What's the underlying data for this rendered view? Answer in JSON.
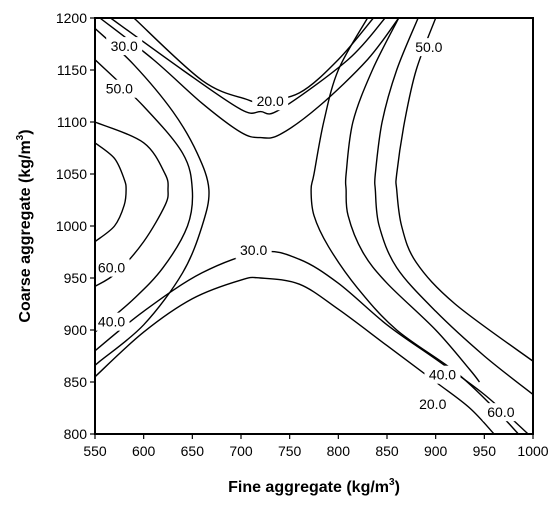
{
  "chart_data": {
    "type": "contour",
    "title": "",
    "xlabel": "Fine aggregate (kg/m",
    "xlabel_sup": "3",
    "xlabel_end": ")",
    "ylabel": "Coarse aggregate (kg/m",
    "ylabel_sup": "3",
    "ylabel_end": ")",
    "xlim": [
      550,
      1000
    ],
    "ylim": [
      800,
      1200
    ],
    "x_ticks": [
      550,
      600,
      650,
      700,
      750,
      800,
      850,
      900,
      950,
      1000
    ],
    "y_ticks": [
      800,
      850,
      900,
      950,
      1000,
      1050,
      1100,
      1150,
      1200
    ],
    "grid": false,
    "contours": [
      {
        "level": "30.0",
        "points": [
          [
            566,
            1200
          ],
          [
            640,
            1150
          ],
          [
            700,
            1112
          ],
          [
            720,
            1110
          ],
          [
            740,
            1112
          ],
          [
            810,
            1160
          ],
          [
            848,
            1200
          ]
        ],
        "label": {
          "x": 580,
          "y": 1173
        }
      },
      {
        "level": "20.0",
        "points": [
          [
            590,
            1200
          ],
          [
            660,
            1140
          ],
          [
            705,
            1122
          ],
          [
            720,
            1120
          ],
          [
            760,
            1128
          ],
          [
            800,
            1160
          ],
          [
            836,
            1200
          ]
        ],
        "label": {
          "x": 730,
          "y": 1120
        }
      },
      {
        "level": "30.0",
        "points": [
          [
            555,
            1200
          ],
          [
            610,
            1160
          ],
          [
            660,
            1118
          ],
          [
            700,
            1090
          ],
          [
            720,
            1085
          ],
          [
            740,
            1088
          ],
          [
            780,
            1115
          ],
          [
            830,
            1160
          ],
          [
            862,
            1200
          ]
        ],
        "label": null
      },
      {
        "level": "50.0",
        "points": [
          [
            550,
            1190
          ],
          [
            590,
            1155
          ],
          [
            630,
            1110
          ],
          [
            655,
            1070
          ],
          [
            667,
            1035
          ],
          [
            660,
            1000
          ],
          [
            640,
            955
          ],
          [
            600,
            905
          ],
          [
            555,
            870
          ],
          [
            550,
            866
          ]
        ],
        "label": {
          "x": 575,
          "y": 1132
        }
      },
      {
        "level": "60.0",
        "points": [
          [
            550,
            1100
          ],
          [
            600,
            1080
          ],
          [
            622,
            1050
          ],
          [
            625,
            1035
          ],
          [
            622,
            1020
          ],
          [
            600,
            985
          ],
          [
            572,
            955
          ],
          [
            550,
            942
          ]
        ],
        "label": {
          "x": 567,
          "y": 960
        }
      },
      {
        "level": "60.0",
        "points": [
          [
            550,
            1080
          ],
          [
            570,
            1065
          ],
          [
            580,
            1045
          ],
          [
            582,
            1035
          ],
          [
            580,
            1020
          ],
          [
            570,
            1000
          ],
          [
            550,
            985
          ]
        ],
        "label": null
      },
      {
        "level": "40.0",
        "points": [
          [
            550,
            1160
          ],
          [
            600,
            1115
          ],
          [
            640,
            1070
          ],
          [
            650,
            1035
          ],
          [
            645,
            1000
          ],
          [
            620,
            960
          ],
          [
            590,
            930
          ],
          [
            560,
            906
          ],
          [
            550,
            898
          ]
        ],
        "label": {
          "x": 567,
          "y": 908
        }
      },
      {
        "level": "30.0",
        "points": [
          [
            550,
            880
          ],
          [
            600,
            918
          ],
          [
            660,
            955
          ],
          [
            720,
            975
          ],
          [
            760,
            968
          ],
          [
            800,
            945
          ],
          [
            850,
            905
          ],
          [
            900,
            872
          ],
          [
            950,
            838
          ],
          [
            995,
            800
          ]
        ],
        "label": {
          "x": 713,
          "y": 977
        }
      },
      {
        "level": "20.0",
        "points": [
          [
            550,
            855
          ],
          [
            600,
            898
          ],
          [
            650,
            930
          ],
          [
            700,
            948
          ],
          [
            720,
            950
          ],
          [
            760,
            944
          ],
          [
            800,
            920
          ],
          [
            850,
            885
          ],
          [
            900,
            850
          ],
          [
            935,
            825
          ],
          [
            960,
            800
          ]
        ],
        "label": {
          "x": 897,
          "y": 829
        }
      },
      {
        "level": "50.0",
        "points": [
          [
            830,
            1200
          ],
          [
            800,
            1150
          ],
          [
            785,
            1100
          ],
          [
            775,
            1050
          ],
          [
            772,
            1035
          ],
          [
            775,
            1010
          ],
          [
            790,
            980
          ],
          [
            820,
            940
          ],
          [
            860,
            900
          ],
          [
            920,
            860
          ],
          [
            960,
            825
          ],
          [
            985,
            800
          ]
        ],
        "label": {
          "x": 893,
          "y": 1172
        }
      },
      {
        "level": "40.0",
        "points": [
          [
            862,
            1200
          ],
          [
            835,
            1150
          ],
          [
            815,
            1100
          ],
          [
            808,
            1050
          ],
          [
            808,
            1035
          ],
          [
            810,
            1010
          ],
          [
            825,
            975
          ],
          [
            850,
            945
          ],
          [
            900,
            900
          ],
          [
            935,
            862
          ],
          [
            945,
            850
          ]
        ],
        "label": {
          "x": 907,
          "y": 857
        }
      },
      {
        "level": "60.0",
        "points": [
          [
            882,
            1200
          ],
          [
            860,
            1150
          ],
          [
            845,
            1100
          ],
          [
            838,
            1050
          ],
          [
            838,
            1035
          ],
          [
            842,
            1000
          ],
          [
            860,
            960
          ],
          [
            900,
            918
          ],
          [
            950,
            875
          ],
          [
            1000,
            838
          ]
        ],
        "label": {
          "x": 967,
          "y": 821
        }
      },
      {
        "level": "",
        "points": [
          [
            900,
            1200
          ],
          [
            880,
            1150
          ],
          [
            868,
            1100
          ],
          [
            860,
            1050
          ],
          [
            860,
            1035
          ],
          [
            865,
            1000
          ],
          [
            880,
            965
          ],
          [
            920,
            925
          ],
          [
            1000,
            870
          ]
        ],
        "label": null
      }
    ]
  }
}
